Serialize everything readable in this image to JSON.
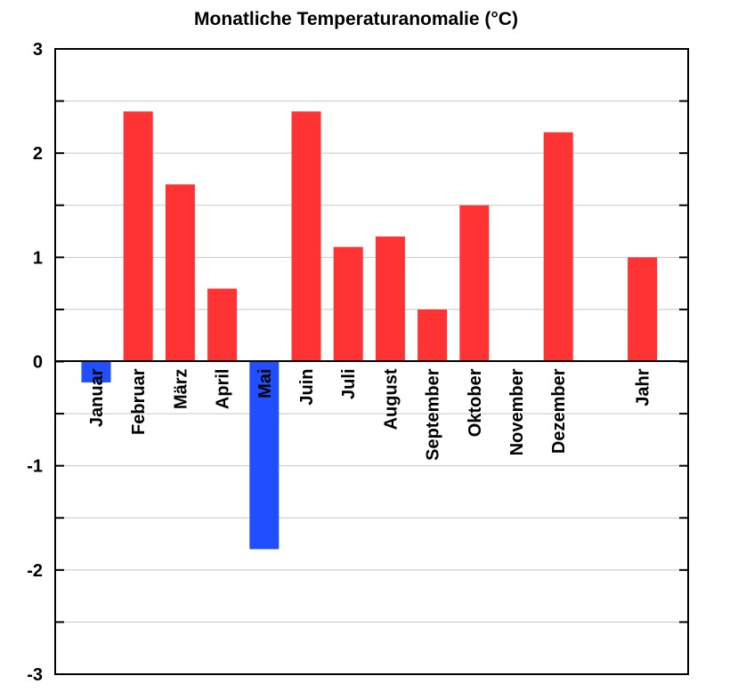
{
  "chart_data": {
    "type": "bar",
    "title": "Monatliche Temperaturanomalie (°C)",
    "xlabel": "",
    "ylabel": "",
    "ylim": [
      -3,
      3
    ],
    "yticks": [
      "3",
      "2",
      "1",
      "0",
      "-1",
      "-2",
      "-3"
    ],
    "grid": true,
    "categories": [
      "Januar",
      "Februar",
      "März",
      "April",
      "Mai",
      "Juin",
      "Juli",
      "August",
      "September",
      "Oktober",
      "November",
      "Dezember",
      "Jahr"
    ],
    "values": [
      -0.2,
      2.4,
      1.7,
      0.7,
      -1.8,
      2.4,
      1.1,
      1.2,
      0.5,
      1.5,
      0.0,
      2.2,
      1.0
    ],
    "colors": {
      "positive": "#ff3333",
      "negative": "#1f4fff"
    }
  }
}
